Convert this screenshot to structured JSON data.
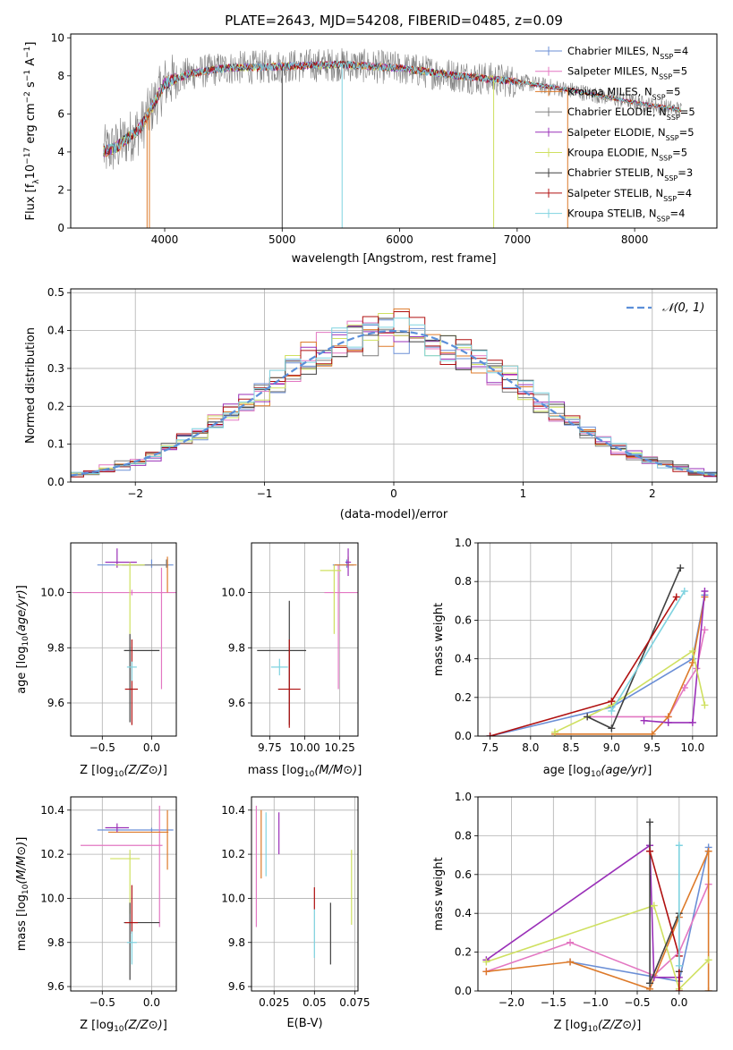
{
  "figure": {
    "title": "PLATE=2643, MJD=54208, FIBERID=0485, z=0.09"
  },
  "series_styles": [
    {
      "name": "Chabrier MILES",
      "nssp": "4",
      "color": "#6b8fd6"
    },
    {
      "name": "Salpeter MILES",
      "nssp": "5",
      "color": "#e377c2"
    },
    {
      "name": "Kroupa MILES",
      "nssp": "5",
      "color": "#dd7a2a"
    },
    {
      "name": "Chabrier ELODIE",
      "nssp": "5",
      "color": "#7f7f7f"
    },
    {
      "name": "Salpeter ELODIE",
      "nssp": "5",
      "color": "#9a30b8"
    },
    {
      "name": "Kroupa ELODIE",
      "nssp": "5",
      "color": "#cfe060"
    },
    {
      "name": "Chabrier STELIB",
      "nssp": "3",
      "color": "#404040"
    },
    {
      "name": "Salpeter STELIB",
      "nssp": "4",
      "color": "#b01010"
    },
    {
      "name": "Kroupa STELIB",
      "nssp": "4",
      "color": "#7fd3e0"
    }
  ],
  "chart_data": [
    {
      "id": "spectrum",
      "type": "line",
      "xlabel": "wavelength [Angstrom, rest frame]",
      "ylabel_parts": [
        "Flux [f",
        "λ",
        "10",
        "−17",
        " erg cm",
        "−2",
        " s",
        "−1",
        " A",
        "−1",
        "]"
      ],
      "xlim": [
        3200,
        8700
      ],
      "ylim": [
        0,
        10.2
      ],
      "xticks": [
        4000,
        5000,
        6000,
        7000,
        8000
      ],
      "yticks": [
        0,
        2,
        4,
        6,
        8,
        10
      ],
      "legend_position": "right",
      "approx_continuum": {
        "x": [
          3480,
          3600,
          3800,
          4000,
          4200,
          4500,
          5000,
          5500,
          6000,
          6500,
          7000,
          7500,
          8000,
          8400
        ],
        "y": [
          4.0,
          4.3,
          5.3,
          7.6,
          8.1,
          8.4,
          8.5,
          8.6,
          8.4,
          8.0,
          7.7,
          7.2,
          6.6,
          6.2
        ]
      }
    },
    {
      "id": "residuals",
      "type": "histogram",
      "xlabel": "(data-model)/error",
      "ylabel": "Normed distribution",
      "xlim": [
        -2.5,
        2.5
      ],
      "ylim": [
        0,
        0.51
      ],
      "xticks": [
        -2,
        -1,
        0,
        1,
        2
      ],
      "yticks": [
        0.0,
        0.1,
        0.2,
        0.3,
        0.4,
        0.5
      ],
      "grid": true,
      "legend_label": "𝒩(0, 1)",
      "legend_position": "top-right",
      "bin_width": 0.12
    },
    {
      "id": "age-vs-Z",
      "type": "scatter",
      "xlabel": "Z [log10(Z/Z⊙)]",
      "ylabel": "age [log10(age/yr)]",
      "xlim": [
        -0.82,
        0.25
      ],
      "ylim": [
        9.48,
        10.18
      ],
      "xticks": [
        -0.5,
        0.0
      ],
      "yticks": [
        9.6,
        9.8,
        10.0
      ],
      "grid": true,
      "points": [
        {
          "s": 0,
          "x": 0.0,
          "y": 10.1,
          "xe": [
            0.55,
            0.22
          ],
          "ye": [
            0.01,
            0.02
          ]
        },
        {
          "s": 1,
          "x": 0.1,
          "y": 10.0,
          "xe": [
            0.01,
            0.01
          ],
          "ye": [
            0.35,
            0.09
          ]
        },
        {
          "s": 1,
          "x": -0.2,
          "y": 10.0,
          "xe": [
            0.6,
            0.55
          ],
          "ye": [
            0.01,
            0.01
          ]
        },
        {
          "s": 2,
          "x": 0.16,
          "y": 10.1,
          "xe": [
            0.01,
            0.01
          ],
          "ye": [
            0.1,
            0.03
          ]
        },
        {
          "s": 3,
          "x": 0.15,
          "y": 10.1,
          "xe": [
            0.45,
            0.01
          ],
          "ye": [
            0.01,
            0.02
          ]
        },
        {
          "s": 4,
          "x": -0.35,
          "y": 10.11,
          "xe": [
            0.12,
            0.2
          ],
          "ye": [
            0.02,
            0.05
          ]
        },
        {
          "s": 5,
          "x": -0.22,
          "y": 10.1,
          "xe": [
            0.15,
            0.15
          ],
          "ye": [
            0.25,
            0.01
          ]
        },
        {
          "s": 6,
          "x": -0.22,
          "y": 9.79,
          "xe": [
            0.06,
            0.3
          ],
          "ye": [
            0.26,
            0.06
          ]
        },
        {
          "s": 7,
          "x": -0.2,
          "y": 9.65,
          "xe": [
            0.07,
            0.06
          ],
          "ye": [
            0.13,
            0.18
          ]
        },
        {
          "s": 8,
          "x": -0.2,
          "y": 9.73,
          "xe": [
            0.05,
            0.05
          ],
          "ye": [
            0.05,
            0.02
          ]
        }
      ]
    },
    {
      "id": "age-vs-mass",
      "type": "scatter",
      "xlabel": "mass [log10(M/M⊙)]",
      "ylabel": "",
      "xlim": [
        9.62,
        10.38
      ],
      "ylim": [
        9.48,
        10.18
      ],
      "xticks": [
        9.75,
        10.0,
        10.25
      ],
      "yticks": [
        9.6,
        9.8,
        10.0
      ],
      "grid": true,
      "points": [
        {
          "s": 0,
          "x": 10.3,
          "y": 10.1,
          "xe": [
            0.1,
            0.05
          ],
          "ye": [
            0.01,
            0.02
          ]
        },
        {
          "s": 1,
          "x": 10.24,
          "y": 10.0,
          "xe": [
            0.1,
            0.15
          ],
          "ye": [
            0.35,
            0.1
          ]
        },
        {
          "s": 2,
          "x": 10.31,
          "y": 10.1,
          "xe": [
            0.1,
            0.06
          ],
          "ye": [
            0.01,
            0.03
          ]
        },
        {
          "s": 4,
          "x": 10.31,
          "y": 10.11,
          "xe": [
            0.02,
            0.02
          ],
          "ye": [
            0.05,
            0.05
          ]
        },
        {
          "s": 5,
          "x": 10.21,
          "y": 10.08,
          "xe": [
            0.1,
            0.05
          ],
          "ye": [
            0.23,
            0.02
          ]
        },
        {
          "s": 6,
          "x": 9.89,
          "y": 9.79,
          "xe": [
            0.23,
            0.12
          ],
          "ye": [
            0.27,
            0.18
          ]
        },
        {
          "s": 7,
          "x": 9.89,
          "y": 9.65,
          "xe": [
            0.08,
            0.08
          ],
          "ye": [
            0.14,
            0.18
          ]
        },
        {
          "s": 8,
          "x": 9.82,
          "y": 9.73,
          "xe": [
            0.06,
            0.06
          ],
          "ye": [
            0.03,
            0.03
          ]
        }
      ]
    },
    {
      "id": "mass-weight-vs-age",
      "type": "line",
      "xlabel": "age [log10(age/yr)]",
      "ylabel": "mass weight",
      "xlim": [
        7.35,
        10.3
      ],
      "ylim": [
        0,
        1.0
      ],
      "xticks": [
        7.5,
        8.0,
        8.5,
        9.0,
        9.5,
        10.0
      ],
      "yticks": [
        0.0,
        0.2,
        0.4,
        0.6,
        0.8,
        1.0
      ],
      "grid": true,
      "series": [
        {
          "s": 0,
          "x": [
            7.5,
            9.0,
            10.0,
            10.15
          ],
          "y": [
            0.0,
            0.15,
            0.4,
            0.73
          ]
        },
        {
          "s": 1,
          "x": [
            8.7,
            9.7,
            9.9,
            10.05,
            10.15
          ],
          "y": [
            0.1,
            0.1,
            0.25,
            0.35,
            0.55
          ]
        },
        {
          "s": 2,
          "x": [
            8.3,
            9.5,
            9.7,
            10.0,
            10.15
          ],
          "y": [
            0.01,
            0.01,
            0.1,
            0.38,
            0.72
          ]
        },
        {
          "s": 4,
          "x": [
            9.4,
            9.7,
            10.0,
            10.15
          ],
          "y": [
            0.08,
            0.07,
            0.07,
            0.75
          ]
        },
        {
          "s": 5,
          "x": [
            8.3,
            9.0,
            10.0,
            10.15
          ],
          "y": [
            0.02,
            0.16,
            0.44,
            0.16
          ]
        },
        {
          "s": 6,
          "x": [
            8.7,
            9.0,
            9.85
          ],
          "y": [
            0.1,
            0.04,
            0.87
          ]
        },
        {
          "s": 7,
          "x": [
            7.5,
            9.0,
            9.8
          ],
          "y": [
            0.0,
            0.18,
            0.72
          ]
        },
        {
          "s": 8,
          "x": [
            9.0,
            9.9
          ],
          "y": [
            0.13,
            0.75
          ]
        }
      ]
    },
    {
      "id": "mass-vs-Z",
      "type": "scatter",
      "xlabel": "Z [log10(Z/Z⊙)]",
      "ylabel": "mass [log10(M/M⊙)]",
      "xlim": [
        -0.82,
        0.25
      ],
      "ylim": [
        9.58,
        10.46
      ],
      "xticks": [
        -0.5,
        0.0
      ],
      "yticks": [
        9.6,
        9.8,
        10.0,
        10.2,
        10.4
      ],
      "grid": true,
      "points": [
        {
          "s": 0,
          "x": 0.0,
          "y": 10.31,
          "xe": [
            0.55,
            0.22
          ],
          "ye": [
            0.01,
            0.01
          ]
        },
        {
          "s": 1,
          "x": 0.08,
          "y": 10.24,
          "xe": [
            0.8,
            0.03
          ],
          "ye": [
            0.37,
            0.18
          ]
        },
        {
          "s": 2,
          "x": 0.16,
          "y": 10.3,
          "xe": [
            0.6,
            0.01
          ],
          "ye": [
            0.17,
            0.1
          ]
        },
        {
          "s": 4,
          "x": -0.35,
          "y": 10.32,
          "xe": [
            0.12,
            0.12
          ],
          "ye": [
            0.02,
            0.02
          ]
        },
        {
          "s": 5,
          "x": -0.22,
          "y": 10.18,
          "xe": [
            0.2,
            0.1
          ],
          "ye": [
            0.25,
            0.04
          ]
        },
        {
          "s": 6,
          "x": -0.22,
          "y": 9.89,
          "xe": [
            0.06,
            0.3
          ],
          "ye": [
            0.26,
            0.09
          ]
        },
        {
          "s": 7,
          "x": -0.2,
          "y": 9.89,
          "xe": [
            0.07,
            0.06
          ],
          "ye": [
            0.05,
            0.17
          ]
        },
        {
          "s": 8,
          "x": -0.2,
          "y": 9.8,
          "xe": [
            0.05,
            0.05
          ],
          "ye": [
            0.1,
            0.05
          ]
        }
      ]
    },
    {
      "id": "mass-vs-ebv",
      "type": "scatter",
      "xlabel": "E(B-V)",
      "ylabel": "",
      "xlim": [
        0.011,
        0.077
      ],
      "ylim": [
        9.58,
        10.46
      ],
      "xticks": [
        0.025,
        0.05,
        0.075
      ],
      "yticks": [
        9.6,
        9.8,
        10.0,
        10.2,
        10.4
      ],
      "grid": true,
      "vlines": [
        {
          "s": 1,
          "x": 0.014,
          "ylo": 9.87,
          "yhi": 10.42
        },
        {
          "s": 2,
          "x": 0.017,
          "ylo": 10.09,
          "yhi": 10.4
        },
        {
          "s": 8,
          "x": 0.02,
          "ylo": 10.1,
          "yhi": 10.39
        },
        {
          "s": 4,
          "x": 0.028,
          "ylo": 10.2,
          "yhi": 10.39
        },
        {
          "s": 7,
          "x": 0.05,
          "ylo": 9.95,
          "yhi": 10.05
        },
        {
          "s": 8,
          "x": 0.05,
          "ylo": 9.73,
          "yhi": 9.95
        },
        {
          "s": 6,
          "x": 0.06,
          "ylo": 9.7,
          "yhi": 9.98
        },
        {
          "s": 5,
          "x": 0.073,
          "ylo": 9.88,
          "yhi": 10.22
        }
      ]
    },
    {
      "id": "mass-weight-vs-Z",
      "type": "line",
      "xlabel": "Z [log10(Z/Z⊙)]",
      "ylabel": "mass weight",
      "xlim": [
        -2.4,
        0.45
      ],
      "ylim": [
        0,
        1.0
      ],
      "xticks": [
        -2.0,
        -1.5,
        -1.0,
        -0.5,
        0.0
      ],
      "yticks": [
        0.0,
        0.2,
        0.4,
        0.6,
        0.8,
        1.0
      ],
      "grid": true,
      "series": [
        {
          "s": 0,
          "x": [
            -1.3,
            0.0,
            0.35
          ],
          "y": [
            0.15,
            0.05,
            0.74
          ]
        },
        {
          "s": 1,
          "x": [
            -2.3,
            -1.3,
            -0.3,
            0.0,
            0.35
          ],
          "y": [
            0.1,
            0.25,
            0.08,
            0.2,
            0.55
          ]
        },
        {
          "s": 2,
          "x": [
            -2.3,
            -1.3,
            -0.35,
            0.0,
            0.35,
            0.35
          ],
          "y": [
            0.1,
            0.15,
            0.01,
            0.38,
            0.72,
            0.0
          ]
        },
        {
          "s": 4,
          "x": [
            -2.3,
            -0.35,
            -0.3,
            0.0
          ],
          "y": [
            0.16,
            0.75,
            0.07,
            0.07
          ]
        },
        {
          "s": 5,
          "x": [
            -2.3,
            -0.3,
            0.0,
            0.35
          ],
          "y": [
            0.15,
            0.44,
            0.01,
            0.16
          ]
        },
        {
          "s": 6,
          "x": [
            -0.35,
            -0.35,
            0.0,
            0.0
          ],
          "y": [
            0.87,
            0.04,
            0.4,
            0.1
          ]
        },
        {
          "s": 7,
          "x": [
            -0.35,
            0.0,
            0.0
          ],
          "y": [
            0.72,
            0.18,
            0.0
          ]
        },
        {
          "s": 8,
          "x": [
            0.0,
            0.0
          ],
          "y": [
            0.13,
            0.75
          ]
        }
      ]
    }
  ]
}
